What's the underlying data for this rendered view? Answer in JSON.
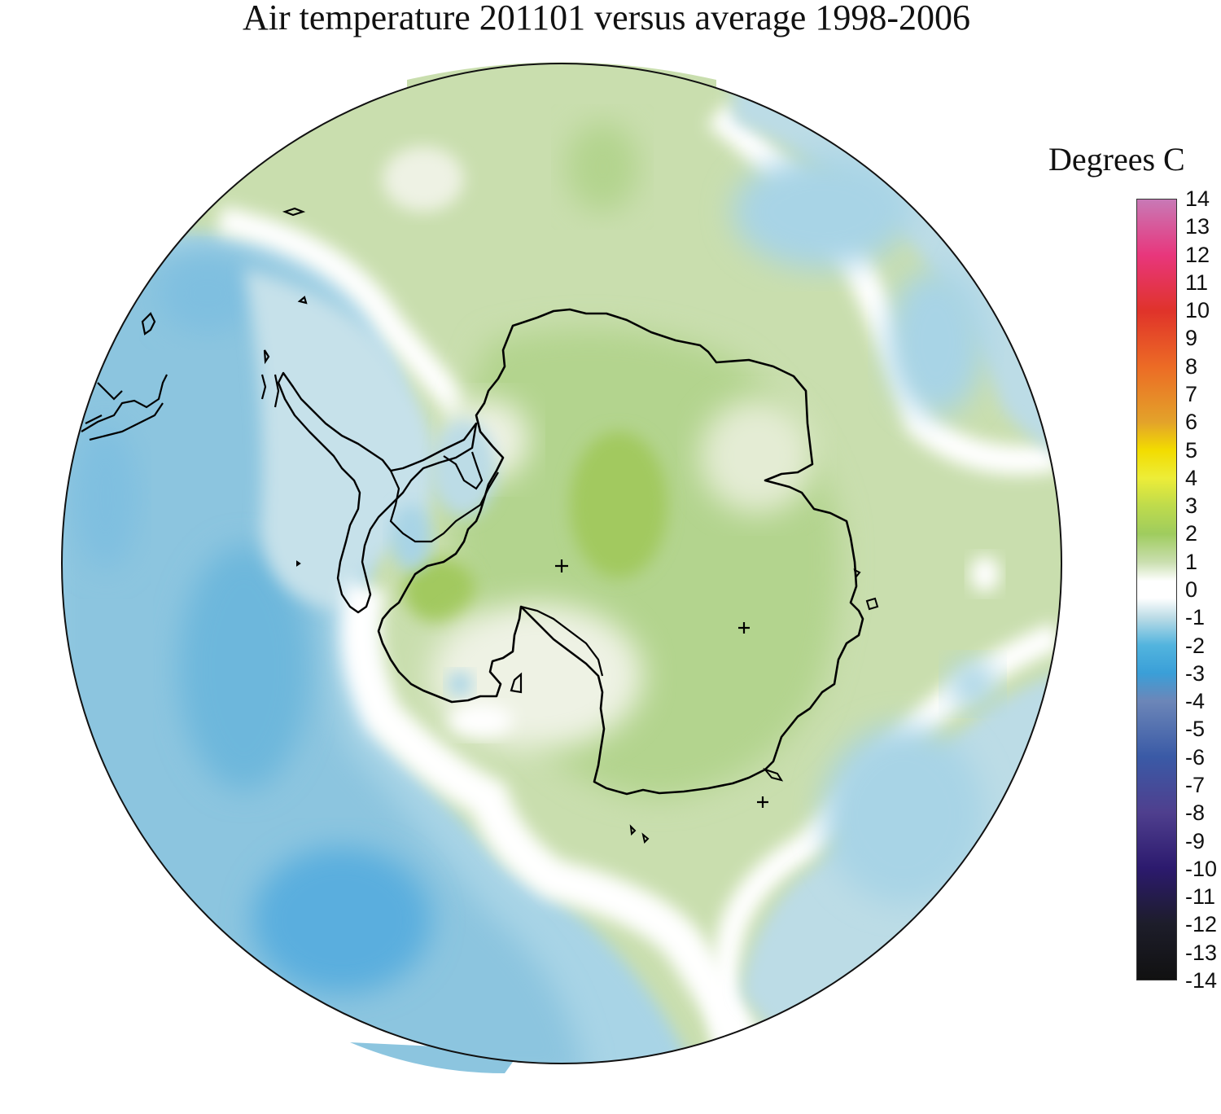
{
  "title": "Air temperature 201101 versus average 1998-2006",
  "legend": {
    "title": "Degrees C",
    "ticks": [
      "14",
      "13",
      "12",
      "11",
      "10",
      "9",
      "8",
      "7",
      "6",
      "5",
      "4",
      "3",
      "2",
      "1",
      "0",
      "-1",
      "-2",
      "-3",
      "-4",
      "-5",
      "-6",
      "-7",
      "-8",
      "-9",
      "-10",
      "-11",
      "-12",
      "-13",
      "-14"
    ],
    "color_stops": [
      {
        "value": 14,
        "color": "#c879b6"
      },
      {
        "value": 12,
        "color": "#e8367c"
      },
      {
        "value": 10,
        "color": "#e0332a"
      },
      {
        "value": 8,
        "color": "#ec6b25"
      },
      {
        "value": 6,
        "color": "#e3a32a"
      },
      {
        "value": 5,
        "color": "#f2dc00"
      },
      {
        "value": 4,
        "color": "#eded38"
      },
      {
        "value": 3,
        "color": "#bedb4c"
      },
      {
        "value": 2,
        "color": "#9fcc5e"
      },
      {
        "value": 1,
        "color": "#c9deae"
      },
      {
        "value": 0.3,
        "color": "#ffffff"
      },
      {
        "value": -0.3,
        "color": "#ffffff"
      },
      {
        "value": -1,
        "color": "#bcdce6"
      },
      {
        "value": -2,
        "color": "#52b4de"
      },
      {
        "value": -3,
        "color": "#3a9fd8"
      },
      {
        "value": -4,
        "color": "#6c86b8"
      },
      {
        "value": -6,
        "color": "#3a5aa6"
      },
      {
        "value": -8,
        "color": "#4f3f8e"
      },
      {
        "value": -10,
        "color": "#2c1a6e"
      },
      {
        "value": -12,
        "color": "#1d1d2a"
      },
      {
        "value": -14,
        "color": "#111111"
      }
    ]
  },
  "map": {
    "projection": "south polar stereographic",
    "field_colors": {
      "ocean_cold": "#a8d4e6",
      "ocean_colder": "#8cc5df",
      "ocean_cool": "#c6e1ea",
      "near_zero": "#ffffff",
      "mild_warm": "#e4ecd4",
      "warm": "#cadfae",
      "warmer": "#b3d48e",
      "warmest": "#a2c95f"
    }
  }
}
